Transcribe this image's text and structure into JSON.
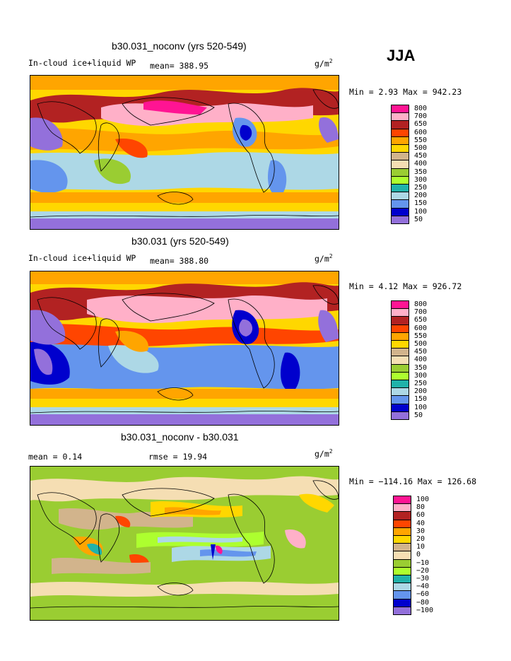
{
  "season": "JJA",
  "panels": [
    {
      "title": "b30.031_noconv (yrs 520-549)",
      "variable": "In-cloud ice+liquid WP",
      "mean_text": "mean= 388.95",
      "units_base": "g/m",
      "units_exp": "2",
      "minmax": "Min =    2.93 Max = 942.23",
      "colorbar": {
        "labels": [
          "800",
          "700",
          "650",
          "600",
          "550",
          "500",
          "450",
          "400",
          "350",
          "300",
          "250",
          "200",
          "150",
          "100",
          "50"
        ],
        "colors": [
          "#ff1493",
          "#ffb0c8",
          "#b22222",
          "#ff4500",
          "#ffa500",
          "#ffd700",
          "#d2b48c",
          "#f5deb3",
          "#9acd32",
          "#adff2f",
          "#20b2aa",
          "#add8e6",
          "#6495ed",
          "#0000cd",
          "#9370db"
        ]
      }
    },
    {
      "title": "b30.031 (yrs 520-549)",
      "variable": "In-cloud ice+liquid WP",
      "mean_text": "mean= 388.80",
      "units_base": "g/m",
      "units_exp": "2",
      "minmax": "Min =    4.12 Max = 926.72",
      "colorbar": {
        "labels": [
          "800",
          "700",
          "650",
          "600",
          "550",
          "500",
          "450",
          "400",
          "350",
          "300",
          "250",
          "200",
          "150",
          "100",
          "50"
        ],
        "colors": [
          "#ff1493",
          "#ffb0c8",
          "#b22222",
          "#ff4500",
          "#ffa500",
          "#ffd700",
          "#d2b48c",
          "#f5deb3",
          "#9acd32",
          "#adff2f",
          "#20b2aa",
          "#add8e6",
          "#6495ed",
          "#0000cd",
          "#9370db"
        ]
      }
    },
    {
      "title": "b30.031_noconv - b30.031",
      "mean_text": "mean =    0.14",
      "rmse_text": "rmse =   19.94",
      "units_base": "g/m",
      "units_exp": "2",
      "minmax": "Min = −114.16 Max = 126.68",
      "colorbar": {
        "labels": [
          "100",
          "80",
          "60",
          "40",
          "30",
          "20",
          "10",
          "0",
          "−10",
          "−20",
          "−30",
          "−40",
          "−60",
          "−80",
          "−100"
        ],
        "colors": [
          "#ff1493",
          "#ffb0c8",
          "#b22222",
          "#ff4500",
          "#ffa500",
          "#ffd700",
          "#d2b48c",
          "#f5deb3",
          "#9acd32",
          "#adff2f",
          "#20b2aa",
          "#add8e6",
          "#6495ed",
          "#0000cd",
          "#9370db"
        ]
      }
    }
  ],
  "chart_data": [
    {
      "type": "heatmap",
      "title": "b30.031_noconv (yrs 520-549)",
      "subtitle": "In-cloud ice+liquid WP",
      "mean": 388.95,
      "min": 2.93,
      "max": 942.23,
      "units": "g/m2",
      "levels": [
        50,
        100,
        150,
        200,
        250,
        300,
        350,
        400,
        450,
        500,
        550,
        600,
        650,
        700,
        800
      ]
    },
    {
      "type": "heatmap",
      "title": "b30.031 (yrs 520-549)",
      "subtitle": "In-cloud ice+liquid WP",
      "mean": 388.8,
      "min": 4.12,
      "max": 926.72,
      "units": "g/m2",
      "levels": [
        50,
        100,
        150,
        200,
        250,
        300,
        350,
        400,
        450,
        500,
        550,
        600,
        650,
        700,
        800
      ]
    },
    {
      "type": "heatmap",
      "title": "b30.031_noconv - b30.031",
      "mean": 0.14,
      "rmse": 19.94,
      "min": -114.16,
      "max": 126.68,
      "units": "g/m2",
      "levels": [
        -100,
        -80,
        -60,
        -40,
        -30,
        -20,
        -10,
        0,
        10,
        20,
        30,
        40,
        60,
        80,
        100
      ]
    }
  ]
}
